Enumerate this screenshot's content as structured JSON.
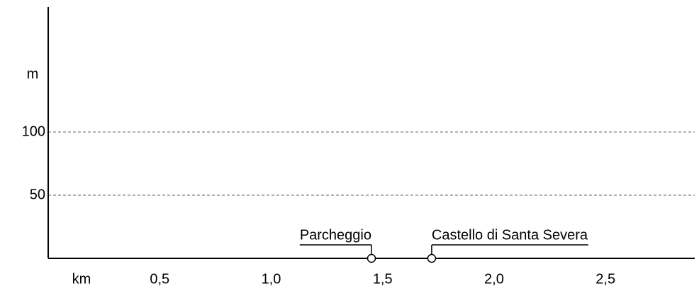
{
  "chart_data": {
    "type": "scatter",
    "y_label": "m",
    "x_label": "km",
    "ylim": [
      0,
      200
    ],
    "yticks": [
      50,
      100
    ],
    "xlim": [
      0,
      2.9
    ],
    "xticks": [
      {
        "value": 0.5,
        "label": "0,5"
      },
      {
        "value": 1.0,
        "label": "1,0"
      },
      {
        "value": 1.5,
        "label": "1,5"
      },
      {
        "value": 2.0,
        "label": "2,0"
      },
      {
        "value": 2.5,
        "label": "2,5"
      }
    ],
    "grid": true,
    "points": [
      {
        "label": "Parcheggio",
        "x": 1.45,
        "y": 0,
        "anchor": "end"
      },
      {
        "label": "Castello di Santa Severa",
        "x": 1.72,
        "y": 0,
        "anchor": "start"
      }
    ]
  }
}
